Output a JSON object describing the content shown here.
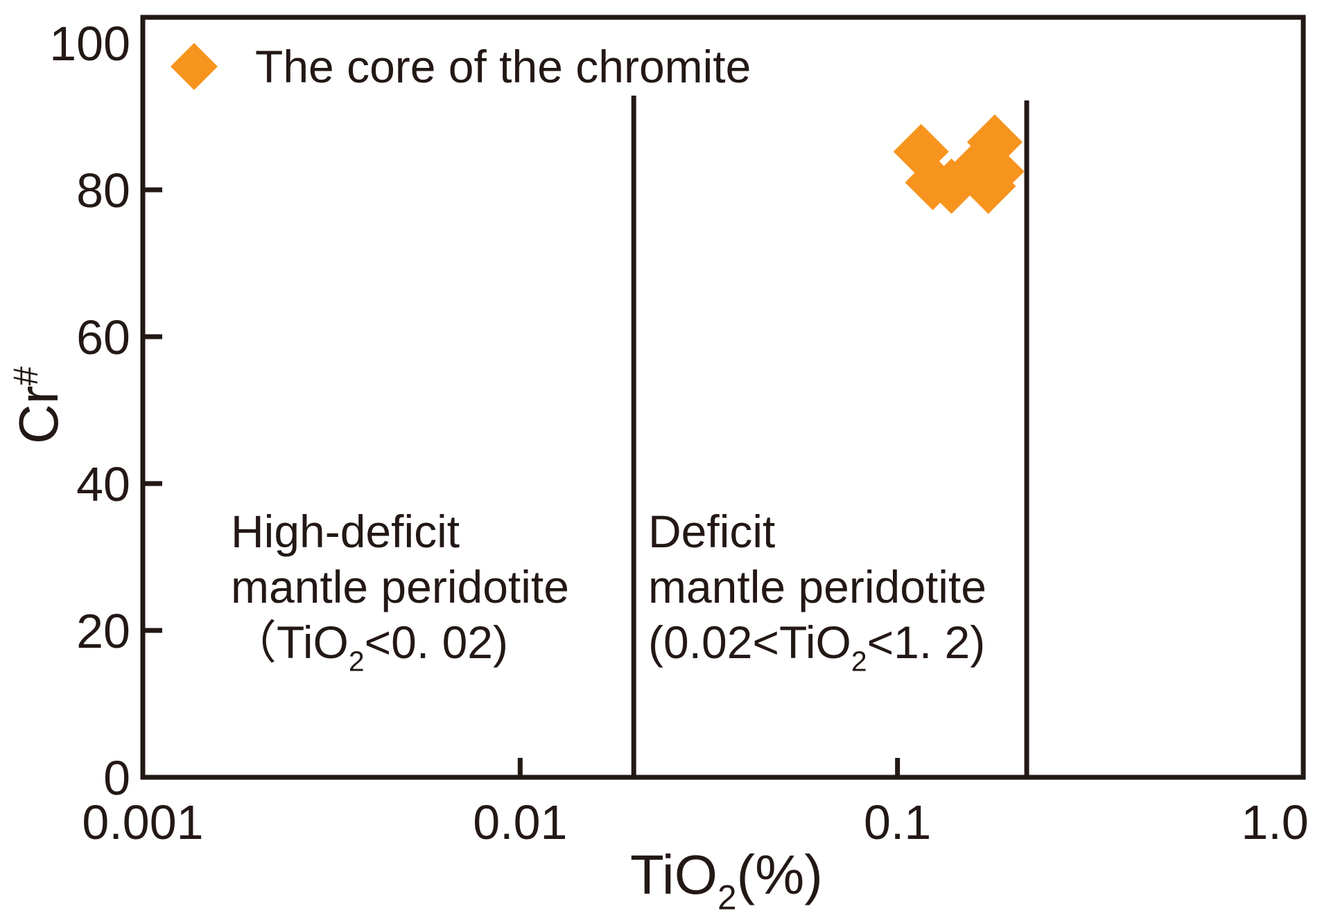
{
  "figure": {
    "background": "#ffffff",
    "ink_color": "#231815",
    "accent_color": "#F7941E"
  },
  "chart_data": {
    "type": "scatter",
    "title": "",
    "x_axis": {
      "scale": "log",
      "range": [
        0.001,
        1.19
      ],
      "tick_values": [
        0.001,
        0.01,
        0.1,
        1.0
      ],
      "tick_labels": [
        "0.001",
        "0.01",
        "0.1",
        "1.0"
      ],
      "tick_marks_at": [
        0.01,
        0.1
      ],
      "label_rich": [
        {
          "t": "TiO"
        },
        {
          "t": "2",
          "dy": "sub"
        },
        {
          "t": "(%)"
        }
      ]
    },
    "y_axis": {
      "scale": "linear",
      "range": [
        0,
        103.5
      ],
      "tick_values": [
        0,
        20,
        40,
        60,
        80,
        100
      ],
      "tick_labels": [
        "0",
        "20",
        "40",
        "60",
        "80",
        "100"
      ],
      "tick_marks_at": [
        20,
        40,
        60,
        80
      ],
      "label_rich": [
        {
          "t": "Cr"
        },
        {
          "t": "#",
          "dy": "sup"
        }
      ]
    },
    "series": [
      {
        "name": "The core of the chromite",
        "marker": "diamond",
        "color": "#F7941E",
        "points": [
          [
            0.1155,
            85.2
          ],
          [
            0.124,
            81.0
          ],
          [
            0.139,
            80.5
          ],
          [
            0.162,
            83.0
          ],
          [
            0.181,
            86.5
          ],
          [
            0.183,
            82.5
          ],
          [
            0.174,
            80.5
          ]
        ]
      }
    ],
    "region_lines": [
      {
        "id": "boundary-002",
        "x": 0.02
      },
      {
        "id": "boundary-022",
        "x": 0.22
      }
    ],
    "annotations": [
      {
        "id": "high-deficit",
        "lines_rich": [
          [
            {
              "t": "High-deficit"
            }
          ],
          [
            {
              "t": "mantle peridotite"
            }
          ],
          [
            {
              "t": "（TiO"
            },
            {
              "t": "2",
              "dy": "sub"
            },
            {
              "t": "<0. 02)"
            }
          ]
        ]
      },
      {
        "id": "deficit",
        "lines_rich": [
          [
            {
              "t": "Deficit"
            }
          ],
          [
            {
              "t": "mantle peridotite"
            }
          ],
          [
            {
              "t": "(0.02<TiO"
            },
            {
              "t": "2",
              "dy": "sub"
            },
            {
              "t": "<1. 2)"
            }
          ]
        ]
      }
    ],
    "legend": {
      "label": "The core of the chromite"
    }
  }
}
